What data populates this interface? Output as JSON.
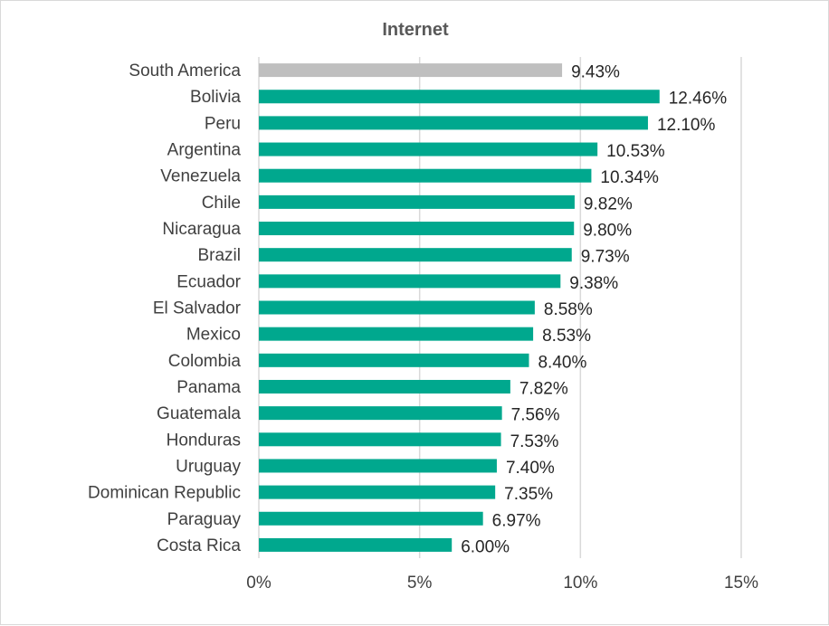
{
  "chart_data": {
    "type": "bar",
    "orientation": "horizontal",
    "title": "Internet",
    "categories": [
      "South America",
      "Bolivia",
      "Peru",
      "Argentina",
      "Venezuela",
      "Chile",
      "Nicaragua",
      "Brazil",
      "Ecuador",
      "El Salvador",
      "Mexico",
      "Colombia",
      "Panama",
      "Guatemala",
      "Honduras",
      "Uruguay",
      "Dominican Republic",
      "Paraguay",
      "Costa Rica"
    ],
    "values": [
      9.43,
      12.46,
      12.1,
      10.53,
      10.34,
      9.82,
      9.8,
      9.73,
      9.38,
      8.58,
      8.53,
      8.4,
      7.82,
      7.56,
      7.53,
      7.4,
      7.35,
      6.97,
      6.0
    ],
    "value_labels": [
      "9.43%",
      "12.46%",
      "12.10%",
      "10.53%",
      "10.34%",
      "9.82%",
      "9.80%",
      "9.73%",
      "9.38%",
      "8.58%",
      "8.53%",
      "8.40%",
      "7.82%",
      "7.56%",
      "7.53%",
      "7.40%",
      "7.35%",
      "6.97%",
      "6.00%"
    ],
    "xlim": [
      0,
      15
    ],
    "xticks": [
      0,
      5,
      10,
      15
    ],
    "xtick_labels": [
      "0%",
      "5%",
      "10%",
      "15%"
    ],
    "grid": true,
    "legend": "none",
    "colors": {
      "highlight": "#bfbfbf",
      "bar": "#00a88e",
      "grid": "#d9d9d9"
    },
    "highlight_category": "South America"
  }
}
